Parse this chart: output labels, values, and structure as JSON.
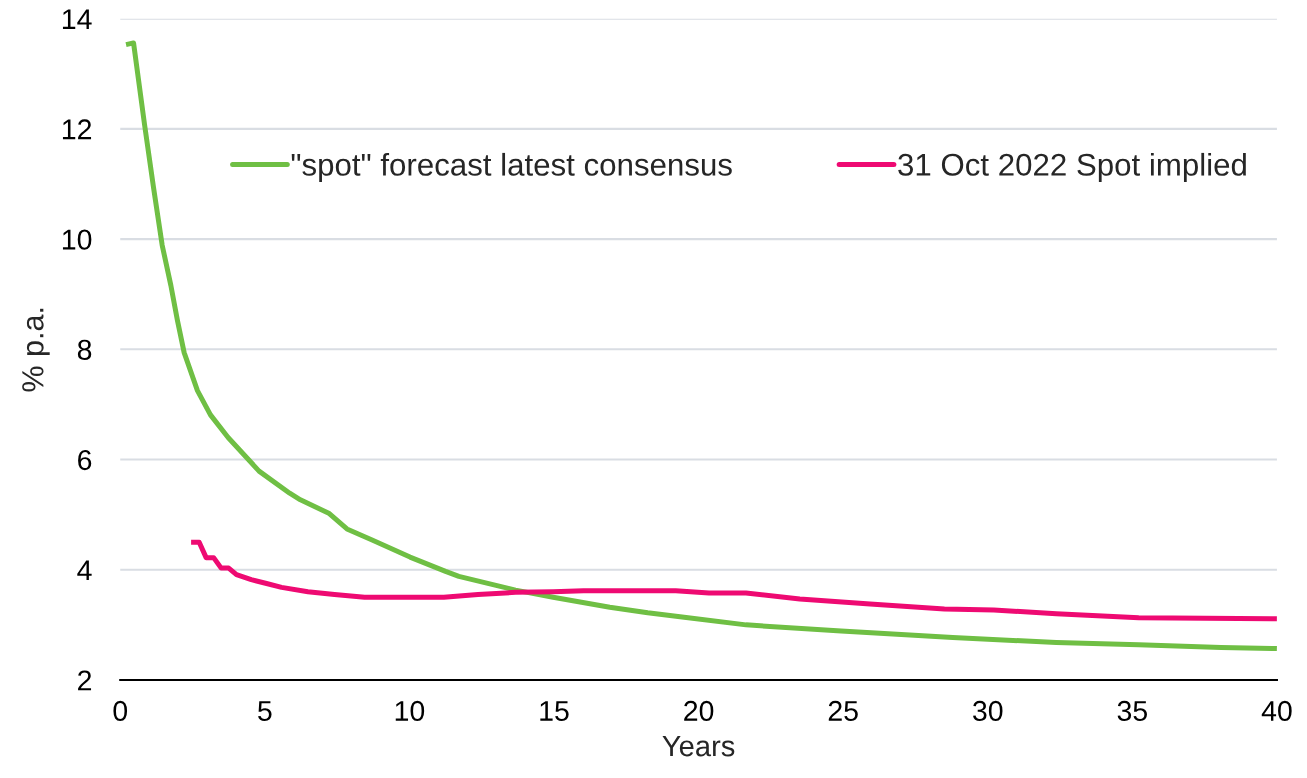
{
  "chart_data": {
    "type": "line",
    "xlabel": "Years",
    "ylabel": "% p.a.",
    "series": [
      {
        "name": "\"spot\" forecast latest consensus",
        "color": "#6fbf44",
        "x": [
          0.2,
          0.46,
          0.84,
          1.15,
          1.45,
          1.75,
          1.98,
          2.21,
          2.67,
          3.12,
          3.73,
          4.8,
          5.86,
          6.23,
          7.23,
          7.84,
          8.71,
          10.02,
          11.25,
          11.71,
          13.67,
          14.97,
          16.93,
          18.24,
          19.5,
          21.64,
          24.93,
          28.79,
          32.37,
          35.22,
          38.07,
          40.0
        ],
        "values": [
          13.53,
          13.56,
          12.08,
          10.94,
          9.89,
          9.16,
          8.52,
          7.94,
          7.25,
          6.81,
          6.4,
          5.79,
          5.39,
          5.27,
          5.02,
          4.74,
          4.54,
          4.23,
          3.97,
          3.88,
          3.63,
          3.5,
          3.32,
          3.22,
          3.14,
          3.0,
          2.89,
          2.77,
          2.68,
          2.64,
          2.59,
          2.57
        ]
      },
      {
        "name": "31 Oct 2022 Spot implied",
        "color": "#ee0a72",
        "x": [
          2.45,
          2.73,
          2.97,
          3.23,
          3.49,
          3.75,
          4.02,
          4.53,
          5.06,
          5.58,
          6.49,
          7.41,
          8.45,
          11.19,
          12.37,
          13.67,
          14.97,
          16.02,
          19.21,
          20.36,
          21.64,
          23.5,
          25.93,
          28.5,
          30.21,
          32.37,
          35.22,
          40.0
        ],
        "values": [
          4.5,
          4.5,
          4.22,
          4.22,
          4.03,
          4.03,
          3.91,
          3.82,
          3.75,
          3.68,
          3.6,
          3.55,
          3.5,
          3.5,
          3.55,
          3.59,
          3.6,
          3.62,
          3.62,
          3.58,
          3.58,
          3.47,
          3.38,
          3.29,
          3.27,
          3.2,
          3.13,
          3.11
        ]
      }
    ],
    "xlim": [
      0,
      40
    ],
    "xticks": [
      0,
      5,
      10,
      15,
      20,
      25,
      30,
      35,
      40
    ],
    "ylim": [
      2,
      14
    ],
    "yticks": [
      2,
      4,
      6,
      8,
      10,
      12,
      14
    ],
    "grid": "y",
    "legend": "top",
    "line_style": "solid"
  }
}
